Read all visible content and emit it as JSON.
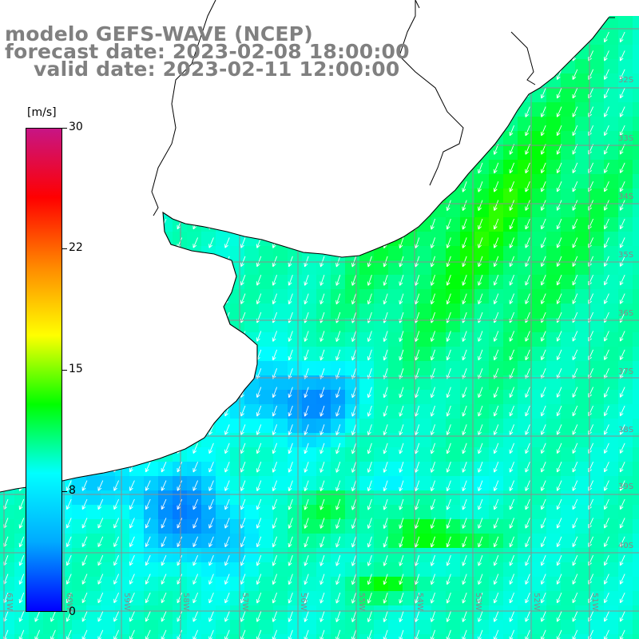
{
  "title": {
    "line1": "modelo GEFS-WAVE (NCEP)",
    "line2": "forecast date: 2023-02-08 18:00:00",
    "line3": "valid date: 2023-02-11 12:00:00"
  },
  "colorbar": {
    "unit": "[m/s]",
    "ticks": [
      "30",
      "22",
      "15",
      "8",
      "0"
    ],
    "tick_values": [
      30,
      22,
      15,
      8,
      0
    ],
    "min": 0,
    "max": 30,
    "stops": [
      "#0000ff",
      "#00aaff",
      "#00ffff",
      "#00ff00",
      "#ffff00",
      "#ff8800",
      "#ff0000",
      "#c71585"
    ]
  },
  "lat_labels": [
    "32S",
    "33S",
    "34S",
    "35S",
    "36S",
    "37S",
    "38S",
    "39S",
    "40S"
  ],
  "lon_labels": [
    "61W",
    "60W",
    "59W",
    "58W",
    "57W",
    "56W",
    "55W",
    "54W",
    "53W",
    "52W",
    "51W"
  ],
  "colors": {
    "land": "#ffffff",
    "coast": "#000000",
    "grid": "#8c8c8c",
    "arrow": "#ffffff",
    "title": "#808080"
  }
}
